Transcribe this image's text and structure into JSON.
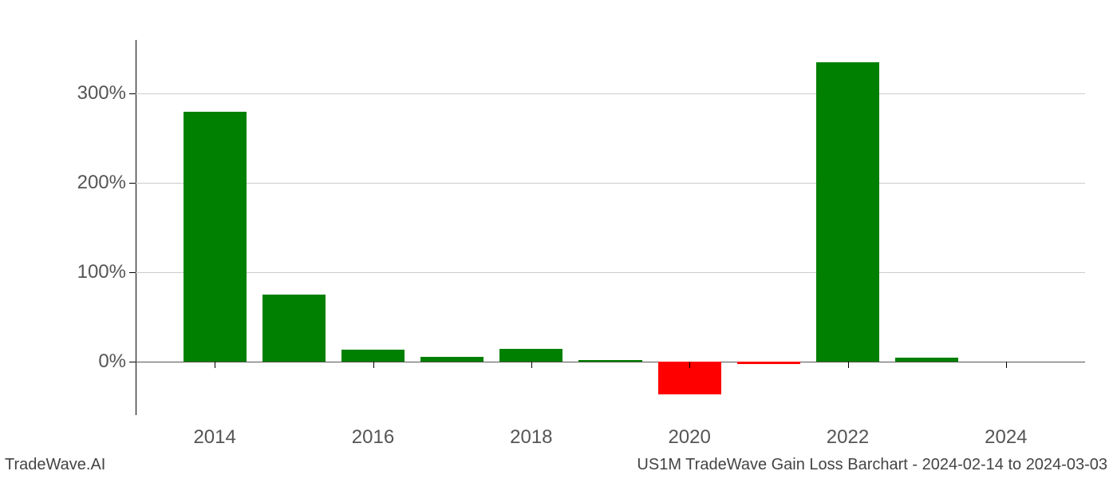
{
  "chart": {
    "type": "bar",
    "years": [
      2014,
      2015,
      2016,
      2017,
      2018,
      2019,
      2020,
      2021,
      2022,
      2023,
      2024
    ],
    "values": [
      280,
      75,
      13,
      5,
      14,
      2,
      -37,
      -3,
      335,
      4,
      0
    ],
    "bar_colors": [
      "#008000",
      "#008000",
      "#008000",
      "#008000",
      "#008000",
      "#008000",
      "#ff0000",
      "#ff0000",
      "#008000",
      "#008000",
      "#008000"
    ],
    "x_range": [
      2013,
      2025
    ],
    "x_ticks": [
      2014,
      2016,
      2018,
      2020,
      2022,
      2024
    ],
    "x_tick_labels": [
      "2014",
      "2016",
      "2018",
      "2020",
      "2022",
      "2024"
    ],
    "y_range": [
      -60,
      360
    ],
    "y_ticks": [
      0,
      100,
      200,
      300
    ],
    "y_tick_labels": [
      "0%",
      "100%",
      "200%",
      "300%"
    ],
    "bar_width_years": 0.8,
    "background_color": "#ffffff",
    "grid_color": "#cccccc",
    "axis_color": "#000000",
    "tick_fontsize": 24,
    "tick_color": "#555555",
    "footer_fontsize": 20,
    "footer_color": "#444444"
  },
  "footer": {
    "left": "TradeWave.AI",
    "right": "US1M TradeWave Gain Loss Barchart - 2024-02-14 to 2024-03-03"
  }
}
